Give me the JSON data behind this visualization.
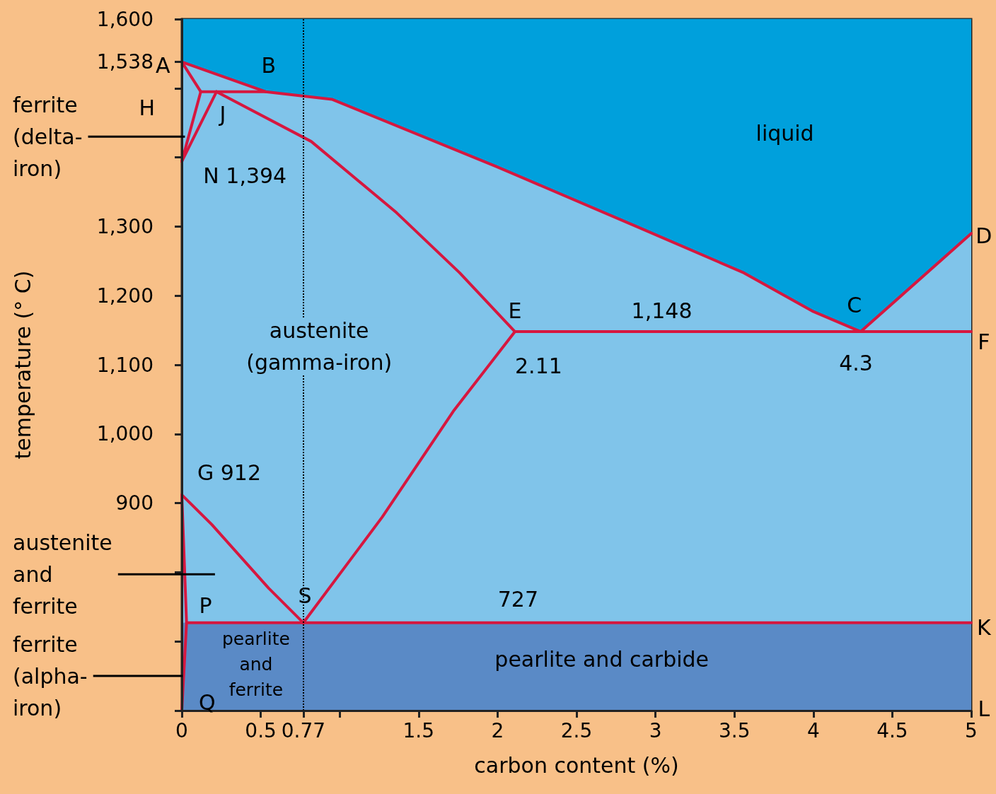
{
  "chart_data": {
    "type": "line",
    "xlabel": "carbon content (%)",
    "ylabel": "temperature (° C)",
    "xlim": [
      0,
      5
    ],
    "xticks": [
      0,
      0.5,
      0.77,
      {
        "value": 1,
        "label": null
      },
      1.5,
      2,
      2.5,
      3,
      3.5,
      4,
      4.5,
      5
    ],
    "ylim": [
      600,
      1600
    ],
    "yticks": [
      {
        "value": 600,
        "label": null
      },
      {
        "value": 700,
        "label": null
      },
      {
        "value": 800,
        "label": null
      },
      900,
      {
        "value": 1000,
        "label": "1,000"
      },
      {
        "value": 1100,
        "label": "1,100"
      },
      {
        "value": 1200,
        "label": "1,200"
      },
      {
        "value": 1300,
        "label": "1,300"
      },
      {
        "value": 1400,
        "label": null
      },
      {
        "value": 1500,
        "label": null
      },
      {
        "value": 1538,
        "label": "1,538"
      },
      {
        "value": 1600,
        "label": "1,600"
      }
    ],
    "marker": "none",
    "line_style": "solid",
    "series": [
      {
        "type": "area",
        "color": "#00a0dc",
        "x": [
          0,
          5
        ],
        "values": [
          1600,
          1600
        ]
      },
      {
        "type": "area",
        "color": "#80c4ea",
        "x": [
          0,
          0.53,
          0.95,
          1.99,
          2.88,
          3.56,
          4.0,
          4.3,
          5
        ],
        "values": [
          1538,
          1495,
          1484,
          1387,
          1300,
          1233,
          1177,
          1148,
          1290
        ]
      },
      {
        "color": "#d6173f",
        "x": [
          0,
          0.53,
          0.95,
          1.99,
          2.88,
          3.56,
          4.0,
          4.3,
          5
        ],
        "values": [
          1538,
          1495,
          1484,
          1387,
          1300,
          1233,
          1177,
          1148,
          1290
        ]
      },
      {
        "color": "#d6173f",
        "x": [
          0,
          0.12
        ],
        "values": [
          1538,
          1495
        ]
      },
      {
        "color": "#d6173f",
        "x": [
          0.12,
          0.53
        ],
        "values": [
          1495,
          1495
        ]
      },
      {
        "color": "#d6173f",
        "x": [
          0.12,
          0
        ],
        "values": [
          1495,
          1394
        ]
      },
      {
        "color": "#d6173f",
        "x": [
          0.22,
          0
        ],
        "values": [
          1495,
          1394
        ]
      },
      {
        "color": "#d6173f",
        "x": [
          0.22,
          0.82,
          1.36,
          1.76,
          2.11
        ],
        "values": [
          1495,
          1423,
          1320,
          1233,
          1148
        ]
      },
      {
        "color": "#d6173f",
        "x": [
          2.11,
          5
        ],
        "values": [
          1148,
          1148
        ]
      },
      {
        "color": "#d6173f",
        "x": [
          2.11,
          1.72,
          1.27,
          0.77
        ],
        "values": [
          1148,
          1033,
          880,
          727
        ]
      },
      {
        "color": "#d6173f",
        "x": [
          0,
          0.19,
          0.55,
          0.77
        ],
        "values": [
          912,
          869,
          777,
          727
        ]
      },
      {
        "color": "#d6173f",
        "x": [
          0,
          0.03,
          0
        ],
        "values": [
          912,
          727,
          600
        ]
      },
      {
        "color": "#d6173f",
        "x": [
          0.03,
          5
        ],
        "values": [
          727,
          727
        ]
      }
    ],
    "ref_lines": [
      {
        "axis": "x",
        "value": 0.77,
        "line_style": "dotted",
        "color": "#000000"
      }
    ],
    "bands": [
      {
        "axis": "y",
        "from": 600,
        "to": 727,
        "color": "#5a8ac6"
      }
    ],
    "annotations": [
      "A",
      "B",
      "H",
      "J",
      "N 1,394",
      "liquid",
      "austenite\n(gamma-iron)",
      "E",
      "1,148",
      "C",
      "2.11",
      "4.3",
      "D",
      "F",
      "K",
      "L",
      "G 912",
      "S",
      "P",
      "727",
      "pearlite\nand\nferrite",
      "pearlite and carbide",
      "Q",
      {
        "text": "ferrite\n(delta-\niron)",
        "x": 0.02,
        "y": 1430
      },
      "austenite\nand\nferrite",
      {
        "text": "ferrite\n(alpha-\niron)",
        "x": 0.005,
        "y": 650
      }
    ]
  }
}
